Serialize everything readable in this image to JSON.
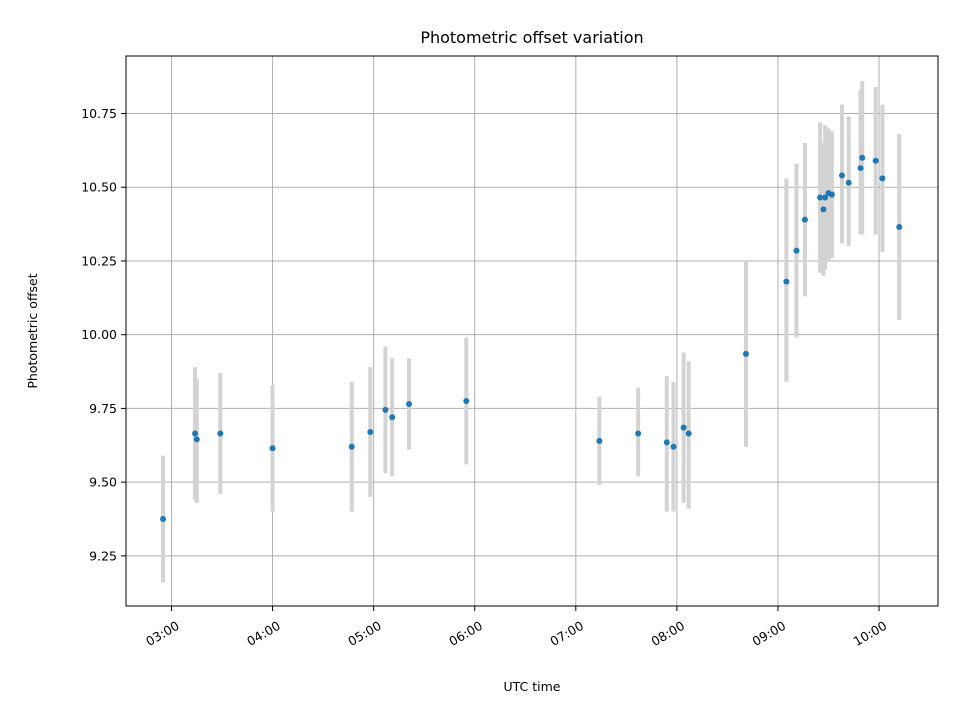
{
  "chart_data": {
    "type": "scatter",
    "title": "Photometric offset variation",
    "xlabel": "UTC time",
    "ylabel": "Photometric offset",
    "x_axis_type": "time",
    "xlim": [
      "02:33",
      "10:35"
    ],
    "ylim": [
      9.08,
      10.945
    ],
    "x_ticks": [
      "03:00",
      "04:00",
      "05:00",
      "06:00",
      "07:00",
      "08:00",
      "09:00",
      "10:00"
    ],
    "y_ticks": [
      9.25,
      9.5,
      9.75,
      10.0,
      10.25,
      10.5,
      10.75
    ],
    "y_tick_labels": [
      "9.25",
      "9.50",
      "9.75",
      "10.00",
      "10.25",
      "10.50",
      "10.75"
    ],
    "grid": true,
    "point_color": "#1f77b4",
    "errorbar_color": "#d3d3d3",
    "points": [
      {
        "x": "02:55",
        "y": 9.375,
        "y_err_low": 9.16,
        "y_err_high": 9.59
      },
      {
        "x": "03:14",
        "y": 9.665,
        "y_err_low": 9.44,
        "y_err_high": 9.89
      },
      {
        "x": "03:15",
        "y": 9.645,
        "y_err_low": 9.43,
        "y_err_high": 9.85
      },
      {
        "x": "03:29",
        "y": 9.665,
        "y_err_low": 9.46,
        "y_err_high": 9.87
      },
      {
        "x": "04:00",
        "y": 9.615,
        "y_err_low": 9.4,
        "y_err_high": 9.83
      },
      {
        "x": "04:47",
        "y": 9.62,
        "y_err_low": 9.4,
        "y_err_high": 9.84
      },
      {
        "x": "04:58",
        "y": 9.67,
        "y_err_low": 9.45,
        "y_err_high": 9.89
      },
      {
        "x": "05:07",
        "y": 9.745,
        "y_err_low": 9.53,
        "y_err_high": 9.96
      },
      {
        "x": "05:11",
        "y": 9.72,
        "y_err_low": 9.52,
        "y_err_high": 9.92
      },
      {
        "x": "05:21",
        "y": 9.765,
        "y_err_low": 9.61,
        "y_err_high": 9.92
      },
      {
        "x": "05:55",
        "y": 9.775,
        "y_err_low": 9.56,
        "y_err_high": 9.99
      },
      {
        "x": "07:14",
        "y": 9.64,
        "y_err_low": 9.49,
        "y_err_high": 9.79
      },
      {
        "x": "07:37",
        "y": 9.665,
        "y_err_low": 9.52,
        "y_err_high": 9.82
      },
      {
        "x": "07:54",
        "y": 9.635,
        "y_err_low": 9.4,
        "y_err_high": 9.86
      },
      {
        "x": "07:58",
        "y": 9.62,
        "y_err_low": 9.4,
        "y_err_high": 9.84
      },
      {
        "x": "08:04",
        "y": 9.685,
        "y_err_low": 9.43,
        "y_err_high": 9.94
      },
      {
        "x": "08:07",
        "y": 9.665,
        "y_err_low": 9.41,
        "y_err_high": 9.91
      },
      {
        "x": "08:41",
        "y": 9.935,
        "y_err_low": 9.62,
        "y_err_high": 10.25
      },
      {
        "x": "09:05",
        "y": 10.18,
        "y_err_low": 9.84,
        "y_err_high": 10.53
      },
      {
        "x": "09:11",
        "y": 10.285,
        "y_err_low": 9.99,
        "y_err_high": 10.58
      },
      {
        "x": "09:16",
        "y": 10.39,
        "y_err_low": 10.13,
        "y_err_high": 10.65
      },
      {
        "x": "09:25",
        "y": 10.465,
        "y_err_low": 10.21,
        "y_err_high": 10.72
      },
      {
        "x": "09:27",
        "y": 10.425,
        "y_err_low": 10.2,
        "y_err_high": 10.65
      },
      {
        "x": "09:28",
        "y": 10.465,
        "y_err_low": 10.22,
        "y_err_high": 10.71
      },
      {
        "x": "09:30",
        "y": 10.48,
        "y_err_low": 10.25,
        "y_err_high": 10.7
      },
      {
        "x": "09:32",
        "y": 10.475,
        "y_err_low": 10.26,
        "y_err_high": 10.69
      },
      {
        "x": "09:38",
        "y": 10.54,
        "y_err_low": 10.31,
        "y_err_high": 10.78
      },
      {
        "x": "09:42",
        "y": 10.515,
        "y_err_low": 10.3,
        "y_err_high": 10.74
      },
      {
        "x": "09:49",
        "y": 10.565,
        "y_err_low": 10.34,
        "y_err_high": 10.83
      },
      {
        "x": "09:50",
        "y": 10.6,
        "y_err_low": 10.34,
        "y_err_high": 10.86
      },
      {
        "x": "09:58",
        "y": 10.59,
        "y_err_low": 10.34,
        "y_err_high": 10.84
      },
      {
        "x": "10:02",
        "y": 10.53,
        "y_err_low": 10.28,
        "y_err_high": 10.78
      },
      {
        "x": "10:12",
        "y": 10.365,
        "y_err_low": 10.05,
        "y_err_high": 10.68
      }
    ]
  }
}
